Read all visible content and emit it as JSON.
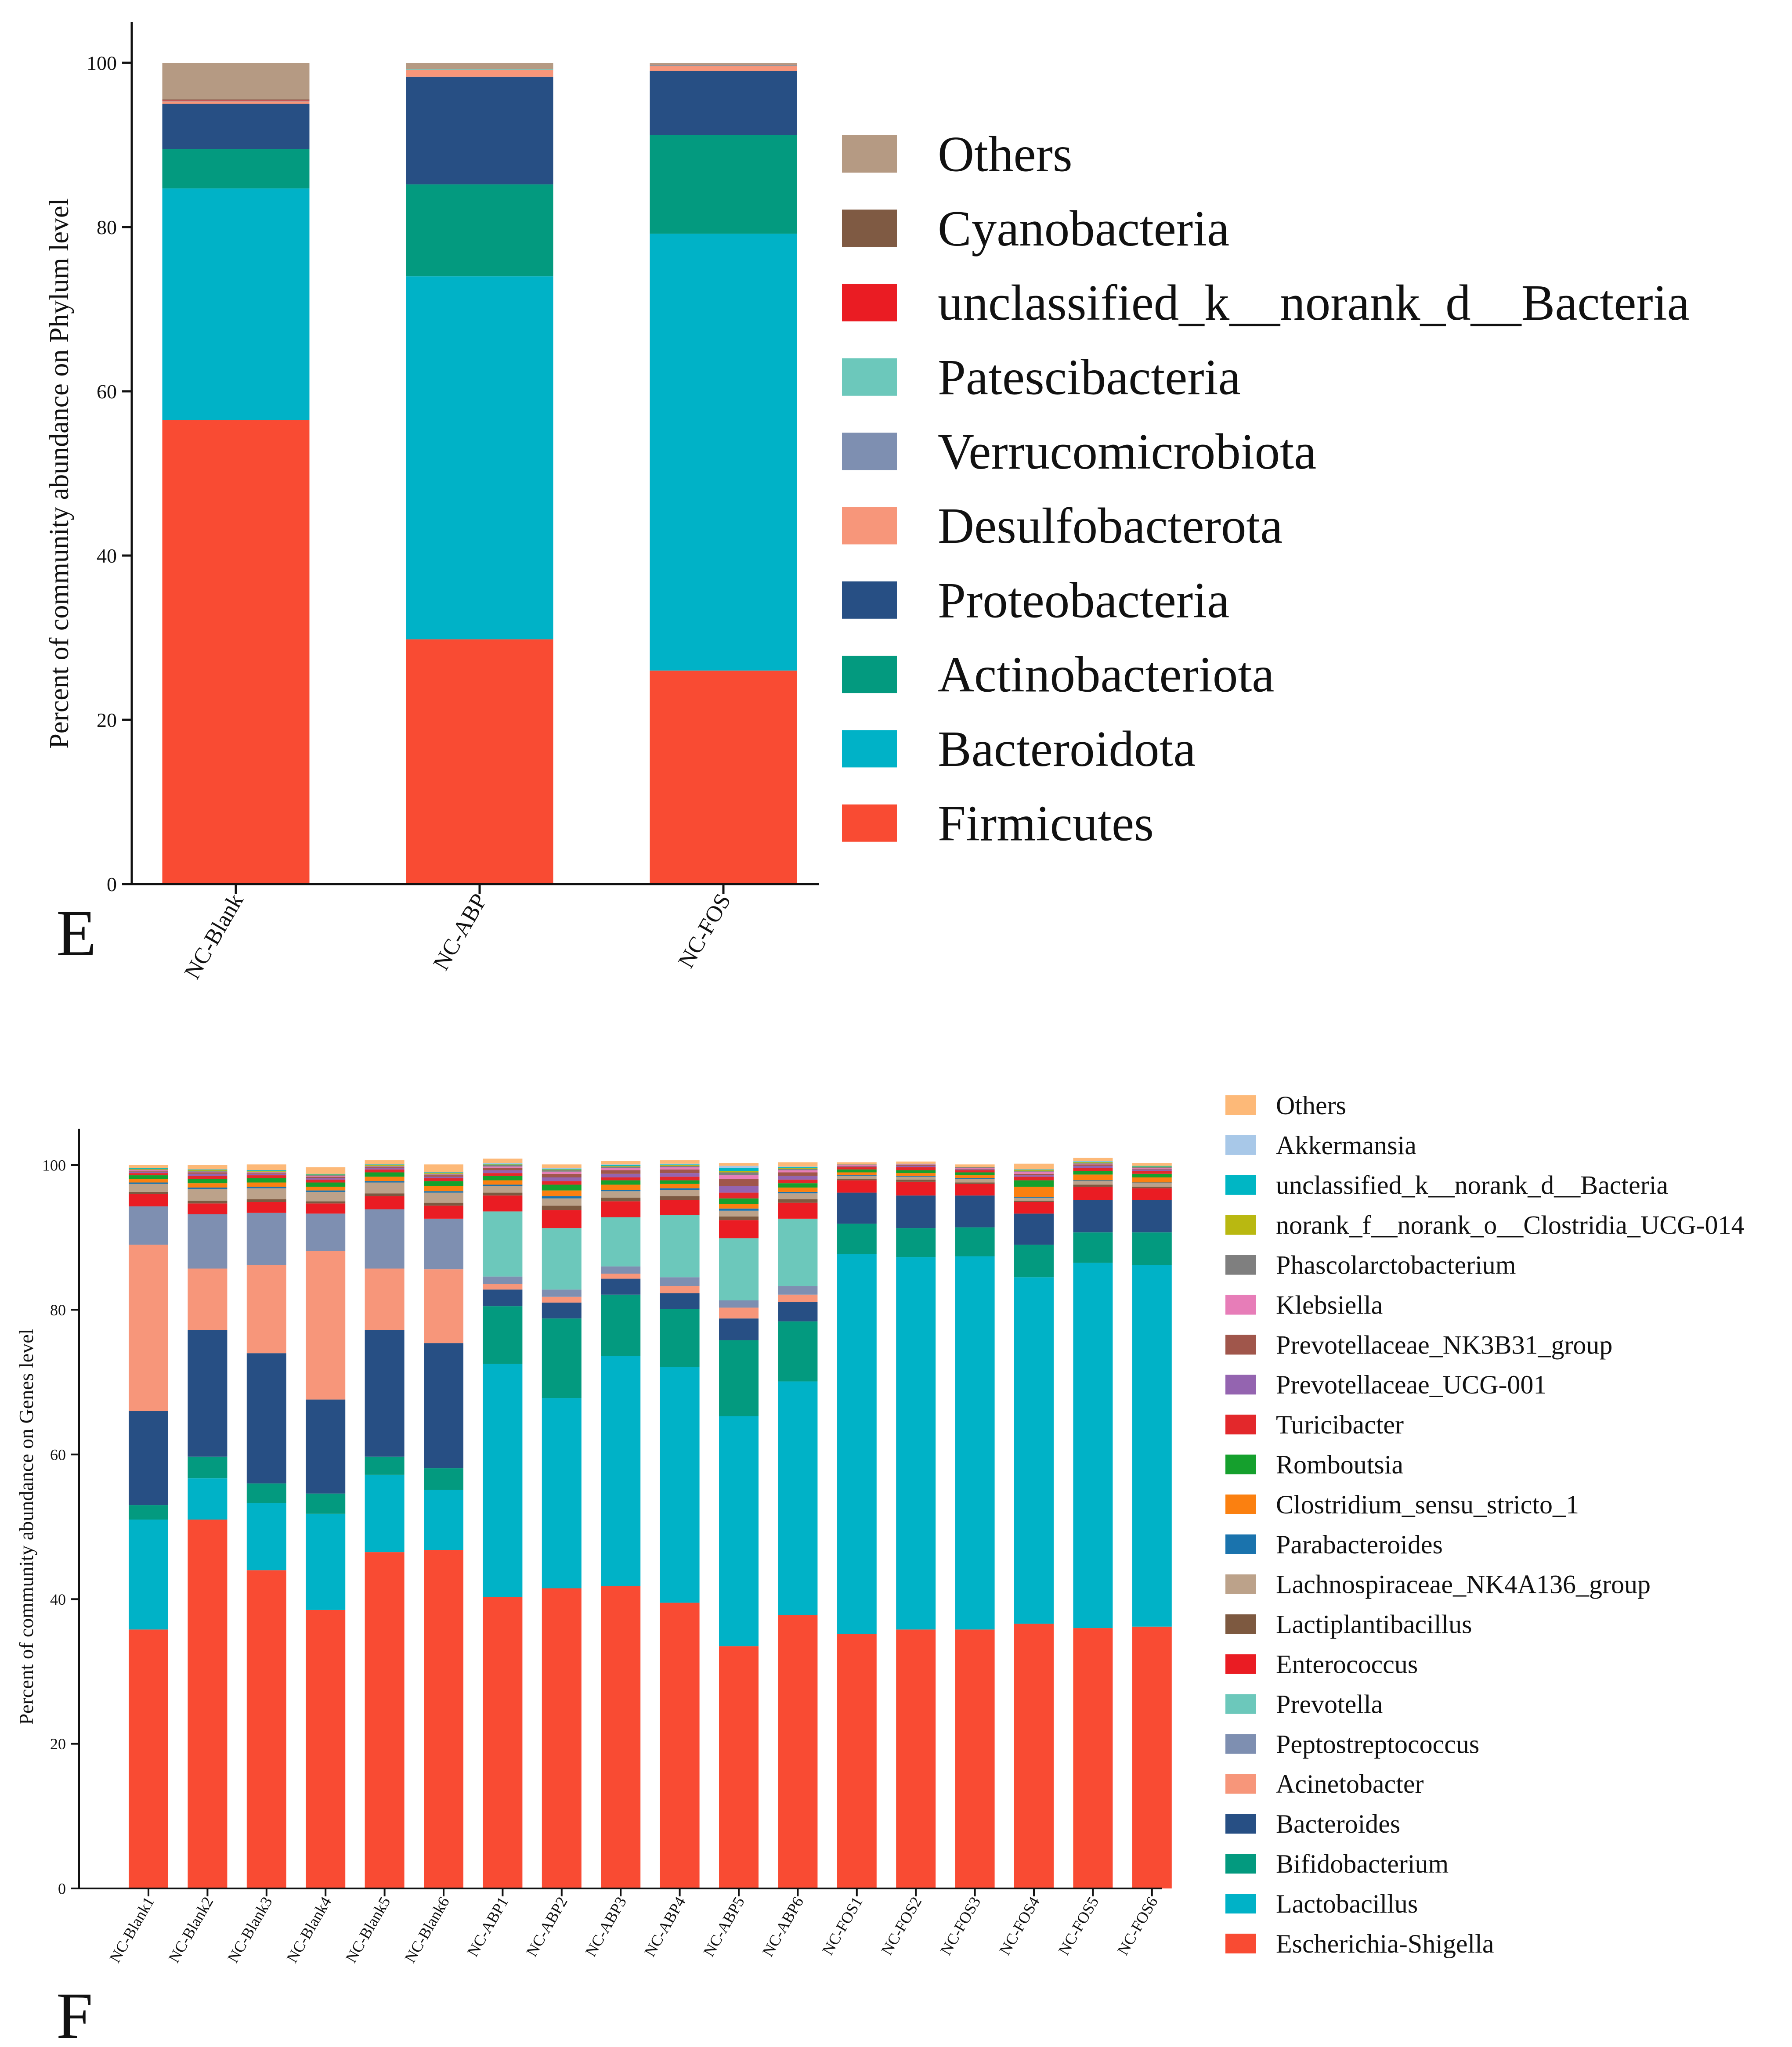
{
  "panel_labels": [
    "E",
    "F"
  ],
  "colors": {
    "Others": "#b59a83",
    "Cyanobacteria": "#7f5a43",
    "unclassified_k__norank_d__Bacteria": "#ea1c23",
    "Patescibacteria": "#6cc8bb",
    "Verrucomicrobiota": "#7e8fb1",
    "Desulfobacterota": "#f7967a",
    "Proteobacteria": "#274f84",
    "Actinobacteriota": "#039a7f",
    "Bacteroidota": "#00b2c7",
    "Firmicutes": "#f94b33",
    "Others_F": "#fdb978",
    "Akkermansia": "#a8c8e8",
    "unclassified_k__norank_d__Bacteria_F": "#00b6c4",
    "norank_f__norank_o__Clostridia_UCG-014": "#b9b811",
    "Phascolarctobacterium": "#7f7f7f",
    "Klebsiella": "#e77db8",
    "Prevotellaceae_NK3B31_group": "#a0564b",
    "Prevotellaceae_UCG-001": "#9464b0",
    "Turicibacter": "#e3282b",
    "Romboutsia": "#15a02d",
    "Clostridium_sensu_stricto_1": "#fb8010",
    "Parabacteroides": "#1a73ad",
    "Lachnospiraceae_NK4A136_group": "#bca28a",
    "Lactiplantibacillus": "#7d5940",
    "Enterococcus": "#ea1c23",
    "Prevotella": "#6cc8bb",
    "Peptostreptococcus": "#7e8fb1",
    "Acinetobacter": "#f7967a",
    "Bacteroides": "#274f84",
    "Bifidobacterium": "#039a7f",
    "Lactobacillus": "#00b2c7",
    "Escherichia-Shigella": "#f94b33"
  },
  "chart_data": [
    {
      "type": "bar",
      "stacked": true,
      "panel": "E",
      "title": "",
      "xlabel": "",
      "ylabel": "Percent of community abundance on Phylum level",
      "ylim": [
        0,
        100
      ],
      "yticks": [
        "0",
        "20",
        "40",
        "60",
        "80",
        "100"
      ],
      "grid": false,
      "legend_position": "right",
      "categories": [
        "NC-Blank",
        "NC-ABP",
        "NC-FOS"
      ],
      "series": [
        {
          "name": "Firmicutes",
          "values": [
            56.5,
            29.8,
            26.0
          ]
        },
        {
          "name": "Bacteroidota",
          "values": [
            28.2,
            44.2,
            53.2
          ]
        },
        {
          "name": "Actinobacteriota",
          "values": [
            4.8,
            11.2,
            12.0
          ]
        },
        {
          "name": "Proteobacteria",
          "values": [
            5.5,
            13.1,
            7.8
          ]
        },
        {
          "name": "Desulfobacterota",
          "values": [
            0.3,
            0.8,
            0.6
          ]
        },
        {
          "name": "Verrucomicrobiota",
          "values": [
            0.05,
            0.05,
            0.05
          ]
        },
        {
          "name": "Patescibacteria",
          "values": [
            0.05,
            0.05,
            0.05
          ]
        },
        {
          "name": "unclassified_k__norank_d__Bacteria",
          "values": [
            0.1,
            0.0,
            0.05
          ]
        },
        {
          "name": "Cyanobacteria",
          "values": [
            0.05,
            0.0,
            0.0
          ]
        },
        {
          "name": "Others",
          "values": [
            4.45,
            0.8,
            0.2
          ]
        }
      ],
      "legend": [
        "Others",
        "Cyanobacteria",
        "unclassified_k__norank_d__Bacteria",
        "Patescibacteria",
        "Verrucomicrobiota",
        "Desulfobacterota",
        "Proteobacteria",
        "Actinobacteriota",
        "Bacteroidota",
        "Firmicutes"
      ]
    },
    {
      "type": "bar",
      "stacked": true,
      "panel": "F",
      "title": "",
      "xlabel": "",
      "ylabel": "Percent of community abundance on Genes level",
      "ylim": [
        0,
        100
      ],
      "yticks": [
        "0",
        "20",
        "40",
        "60",
        "80",
        "100"
      ],
      "grid": false,
      "legend_position": "right",
      "categories": [
        "NC-Blank1",
        "NC-Blank2",
        "NC-Blank3",
        "NC-Blank4",
        "NC-Blank5",
        "NC-Blank6",
        "NC-ABP1",
        "NC-ABP2",
        "NC-ABP3",
        "NC-ABP4",
        "NC-ABP5",
        "NC-ABP6",
        "NC-FOS1",
        "NC-FOS2",
        "NC-FOS3",
        "NC-FOS4",
        "NC-FOS5",
        "NC-FOS6"
      ],
      "series": [
        {
          "name": "Escherichia-Shigella",
          "values": [
            35.8,
            51.0,
            44.0,
            38.5,
            46.5,
            46.8,
            40.3,
            41.5,
            41.8,
            39.5,
            33.5,
            37.8,
            35.2,
            35.8,
            35.8,
            36.6,
            36.0,
            36.2
          ]
        },
        {
          "name": "Lactobacillus",
          "values": [
            15.2,
            5.7,
            9.3,
            13.3,
            10.7,
            8.3,
            32.2,
            26.3,
            31.8,
            32.6,
            31.8,
            32.3,
            52.5,
            51.5,
            51.6,
            47.9,
            50.5,
            50.0
          ]
        },
        {
          "name": "Bifidobacterium",
          "values": [
            2.0,
            3.0,
            2.7,
            2.8,
            2.5,
            3.0,
            8.0,
            11.0,
            8.5,
            8.0,
            10.5,
            8.3,
            4.2,
            4.0,
            4.0,
            4.5,
            4.2,
            4.5
          ]
        },
        {
          "name": "Bacteroides",
          "values": [
            13.0,
            17.5,
            18.0,
            13.0,
            17.5,
            17.3,
            2.3,
            2.2,
            2.2,
            2.2,
            3.0,
            2.7,
            4.3,
            4.5,
            4.4,
            4.3,
            4.5,
            4.5
          ]
        },
        {
          "name": "Acinetobacter",
          "values": [
            23.0,
            8.5,
            12.2,
            20.5,
            8.5,
            10.2,
            0.8,
            0.8,
            0.7,
            1.0,
            1.5,
            1.0,
            0.0,
            0.0,
            0.0,
            0.0,
            0.0,
            0.0
          ]
        },
        {
          "name": "Peptostreptococcus",
          "values": [
            5.3,
            7.5,
            7.2,
            5.2,
            8.2,
            7.0,
            1.0,
            1.0,
            1.0,
            1.2,
            1.0,
            1.2,
            0.0,
            0.0,
            0.0,
            0.0,
            0.0,
            0.0
          ]
        },
        {
          "name": "Prevotella",
          "values": [
            0.0,
            0.0,
            0.0,
            0.0,
            0.0,
            0.0,
            9.0,
            8.5,
            6.8,
            8.6,
            8.6,
            9.3,
            0.0,
            0.0,
            0.0,
            0.0,
            0.0,
            0.0
          ]
        },
        {
          "name": "Enterococcus",
          "values": [
            1.7,
            1.5,
            1.5,
            1.4,
            1.8,
            1.8,
            2.2,
            2.5,
            2.2,
            2.1,
            2.5,
            2.2,
            1.7,
            1.9,
            1.6,
            1.6,
            1.8,
            1.6
          ]
        },
        {
          "name": "Lactiplantibacillus",
          "values": [
            0.3,
            0.4,
            0.4,
            0.3,
            0.4,
            0.4,
            0.4,
            0.6,
            0.5,
            0.5,
            0.5,
            0.5,
            0.2,
            0.3,
            0.2,
            0.2,
            0.3,
            0.2
          ]
        },
        {
          "name": "Lachnospiraceae_NK4A136_group",
          "values": [
            1.1,
            1.6,
            1.5,
            1.3,
            1.5,
            1.4,
            0.9,
            1.0,
            0.9,
            0.9,
            0.8,
            0.8,
            0.4,
            0.4,
            0.5,
            0.4,
            0.5,
            0.5
          ]
        },
        {
          "name": "Parabacteroides",
          "values": [
            0.2,
            0.2,
            0.2,
            0.2,
            0.2,
            0.2,
            0.2,
            0.3,
            0.2,
            0.2,
            0.3,
            0.2,
            0.1,
            0.1,
            0.1,
            0.1,
            0.1,
            0.1
          ]
        },
        {
          "name": "Clostridium_sensu_stricto_1",
          "values": [
            0.5,
            0.6,
            0.6,
            0.5,
            0.6,
            0.7,
            0.6,
            0.8,
            0.7,
            0.6,
            0.6,
            0.6,
            0.4,
            0.4,
            0.4,
            1.4,
            0.8,
            0.7
          ]
        },
        {
          "name": "Romboutsia",
          "values": [
            0.5,
            0.6,
            0.6,
            0.6,
            0.6,
            0.7,
            0.6,
            0.8,
            0.6,
            0.5,
            0.8,
            0.6,
            0.4,
            0.4,
            0.4,
            0.9,
            0.5,
            0.5
          ]
        },
        {
          "name": "Turicibacter",
          "values": [
            0.3,
            0.4,
            0.4,
            0.4,
            0.4,
            0.4,
            0.4,
            0.5,
            0.4,
            0.5,
            0.8,
            0.5,
            0.3,
            0.4,
            0.3,
            0.5,
            0.4,
            0.4
          ]
        },
        {
          "name": "Prevotellaceae_UCG-001",
          "values": [
            0.2,
            0.3,
            0.2,
            0.2,
            0.2,
            0.2,
            0.4,
            0.5,
            0.5,
            0.5,
            0.9,
            0.5,
            0.1,
            0.2,
            0.1,
            0.2,
            0.3,
            0.2
          ]
        },
        {
          "name": "Prevotellaceae_NK3B31_group",
          "values": [
            0.1,
            0.2,
            0.1,
            0.2,
            0.1,
            0.2,
            0.3,
            0.5,
            0.5,
            0.5,
            1.0,
            0.5,
            0.1,
            0.1,
            0.1,
            0.2,
            0.2,
            0.1
          ]
        },
        {
          "name": "Klebsiella",
          "values": [
            0.1,
            0.1,
            0.1,
            0.1,
            0.1,
            0.1,
            0.2,
            0.3,
            0.3,
            0.3,
            0.5,
            0.3,
            0.1,
            0.1,
            0.1,
            0.3,
            0.1,
            0.1
          ]
        },
        {
          "name": "Phascolarctobacterium",
          "values": [
            0.1,
            0.1,
            0.1,
            0.1,
            0.1,
            0.1,
            0.2,
            0.2,
            0.2,
            0.2,
            0.4,
            0.2,
            0.1,
            0.1,
            0.1,
            0.1,
            0.1,
            0.1
          ]
        },
        {
          "name": "norank_f__norank_o__Clostridia_UCG-014",
          "values": [
            0.1,
            0.1,
            0.1,
            0.1,
            0.1,
            0.1,
            0.1,
            0.1,
            0.1,
            0.1,
            0.2,
            0.1,
            0.0,
            0.0,
            0.0,
            0.1,
            0.1,
            0.1
          ]
        },
        {
          "name": "unclassified_k__norank_d__Bacteria",
          "values": [
            0.1,
            0.1,
            0.1,
            0.1,
            0.1,
            0.1,
            0.1,
            0.1,
            0.1,
            0.1,
            0.4,
            0.1,
            0.0,
            0.0,
            0.0,
            0.1,
            0.1,
            0.1
          ]
        },
        {
          "name": "Akkermansia",
          "values": [
            0.0,
            0.0,
            0.0,
            0.0,
            0.0,
            0.0,
            0.1,
            0.1,
            0.1,
            0.1,
            0.3,
            0.1,
            0.0,
            0.0,
            0.0,
            0.0,
            0.1,
            0.0
          ]
        },
        {
          "name": "Others",
          "values": [
            0.4,
            0.6,
            0.8,
            0.9,
            0.6,
            1.1,
            0.6,
            0.5,
            0.5,
            0.5,
            0.4,
            0.6,
            0.3,
            0.3,
            0.4,
            0.8,
            0.4,
            0.4
          ]
        }
      ],
      "legend": [
        "Others",
        "Akkermansia",
        "unclassified_k__norank_d__Bacteria",
        "norank_f__norank_o__Clostridia_UCG-014",
        "Phascolarctobacterium",
        "Klebsiella",
        "Prevotellaceae_NK3B31_group",
        "Prevotellaceae_UCG-001",
        "Turicibacter",
        "Romboutsia",
        "Clostridium_sensu_stricto_1",
        "Parabacteroides",
        "Lachnospiraceae_NK4A136_group",
        "Lactiplantibacillus",
        "Enterococcus",
        "Prevotella",
        "Peptostreptococcus",
        "Acinetobacter",
        "Bacteroides",
        "Bifidobacterium",
        "Lactobacillus",
        "Escherichia-Shigella"
      ]
    }
  ]
}
